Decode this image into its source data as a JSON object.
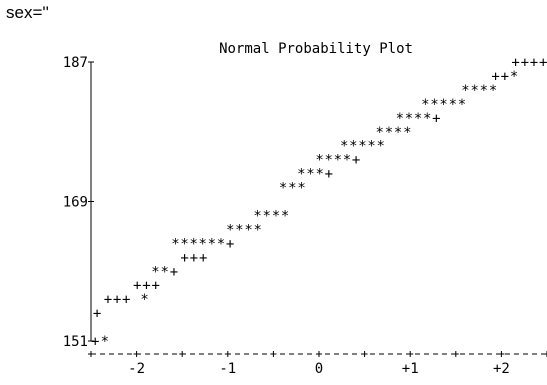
{
  "header": {
    "by_group_label": "sex=''"
  },
  "chart_data": {
    "type": "scatter",
    "title": "Normal Probability Plot",
    "xlabel": "",
    "ylabel": "",
    "y_axis_labels": [
      {
        "value": 187,
        "label": "187"
      },
      {
        "value": 169,
        "label": "169"
      },
      {
        "value": 151,
        "label": "151"
      }
    ],
    "x_axis_labels": [
      {
        "value": -2,
        "label": "-2"
      },
      {
        "value": -1,
        "label": "-1"
      },
      {
        "value": 0,
        "label": "0"
      },
      {
        "value": 1,
        "label": "+1"
      },
      {
        "value": 2,
        "label": "+2"
      }
    ],
    "xlim": [
      -2.5,
      2.5
    ],
    "ylim": [
      151,
      187
    ],
    "grid": false,
    "observation_glyph": "*",
    "reference_glyph": "+",
    "rows": [
      {
        "y": 187.0,
        "text": "++++",
        "x_start": 2.11
      },
      {
        "y": 185.2,
        "text": "++*",
        "x_start": 1.89
      },
      {
        "y": 183.4,
        "text": "****",
        "x_start": 1.56
      },
      {
        "y": 181.6,
        "text": "*****",
        "x_start": 1.12
      },
      {
        "y": 179.8,
        "text": "****+",
        "x_start": 0.84
      },
      {
        "y": 178.0,
        "text": "****",
        "x_start": 0.62
      },
      {
        "y": 176.2,
        "text": "*****",
        "x_start": 0.23
      },
      {
        "y": 174.4,
        "text": "****+",
        "x_start": -0.04
      },
      {
        "y": 172.6,
        "text": "***+",
        "x_start": -0.24
      },
      {
        "y": 170.8,
        "text": "***",
        "x_start": -0.44
      },
      {
        "y": 167.2,
        "text": "****",
        "x_start": -0.72
      },
      {
        "y": 165.4,
        "text": "****",
        "x_start": -1.02
      },
      {
        "y": 163.6,
        "text": "******+",
        "x_start": -1.62
      },
      {
        "y": 161.8,
        "text": "+++",
        "x_start": -1.52
      },
      {
        "y": 160.0,
        "text": "**+",
        "x_start": -1.84
      },
      {
        "y": 158.2,
        "text": "+++",
        "x_start": -2.04
      },
      {
        "y": 156.4,
        "text": "+++ *",
        "x_start": -2.36
      },
      {
        "y": 154.6,
        "text": "+",
        "x_start": -2.48
      },
      {
        "y": 151.0,
        "text": "+*",
        "x_start": -2.5
      }
    ]
  }
}
